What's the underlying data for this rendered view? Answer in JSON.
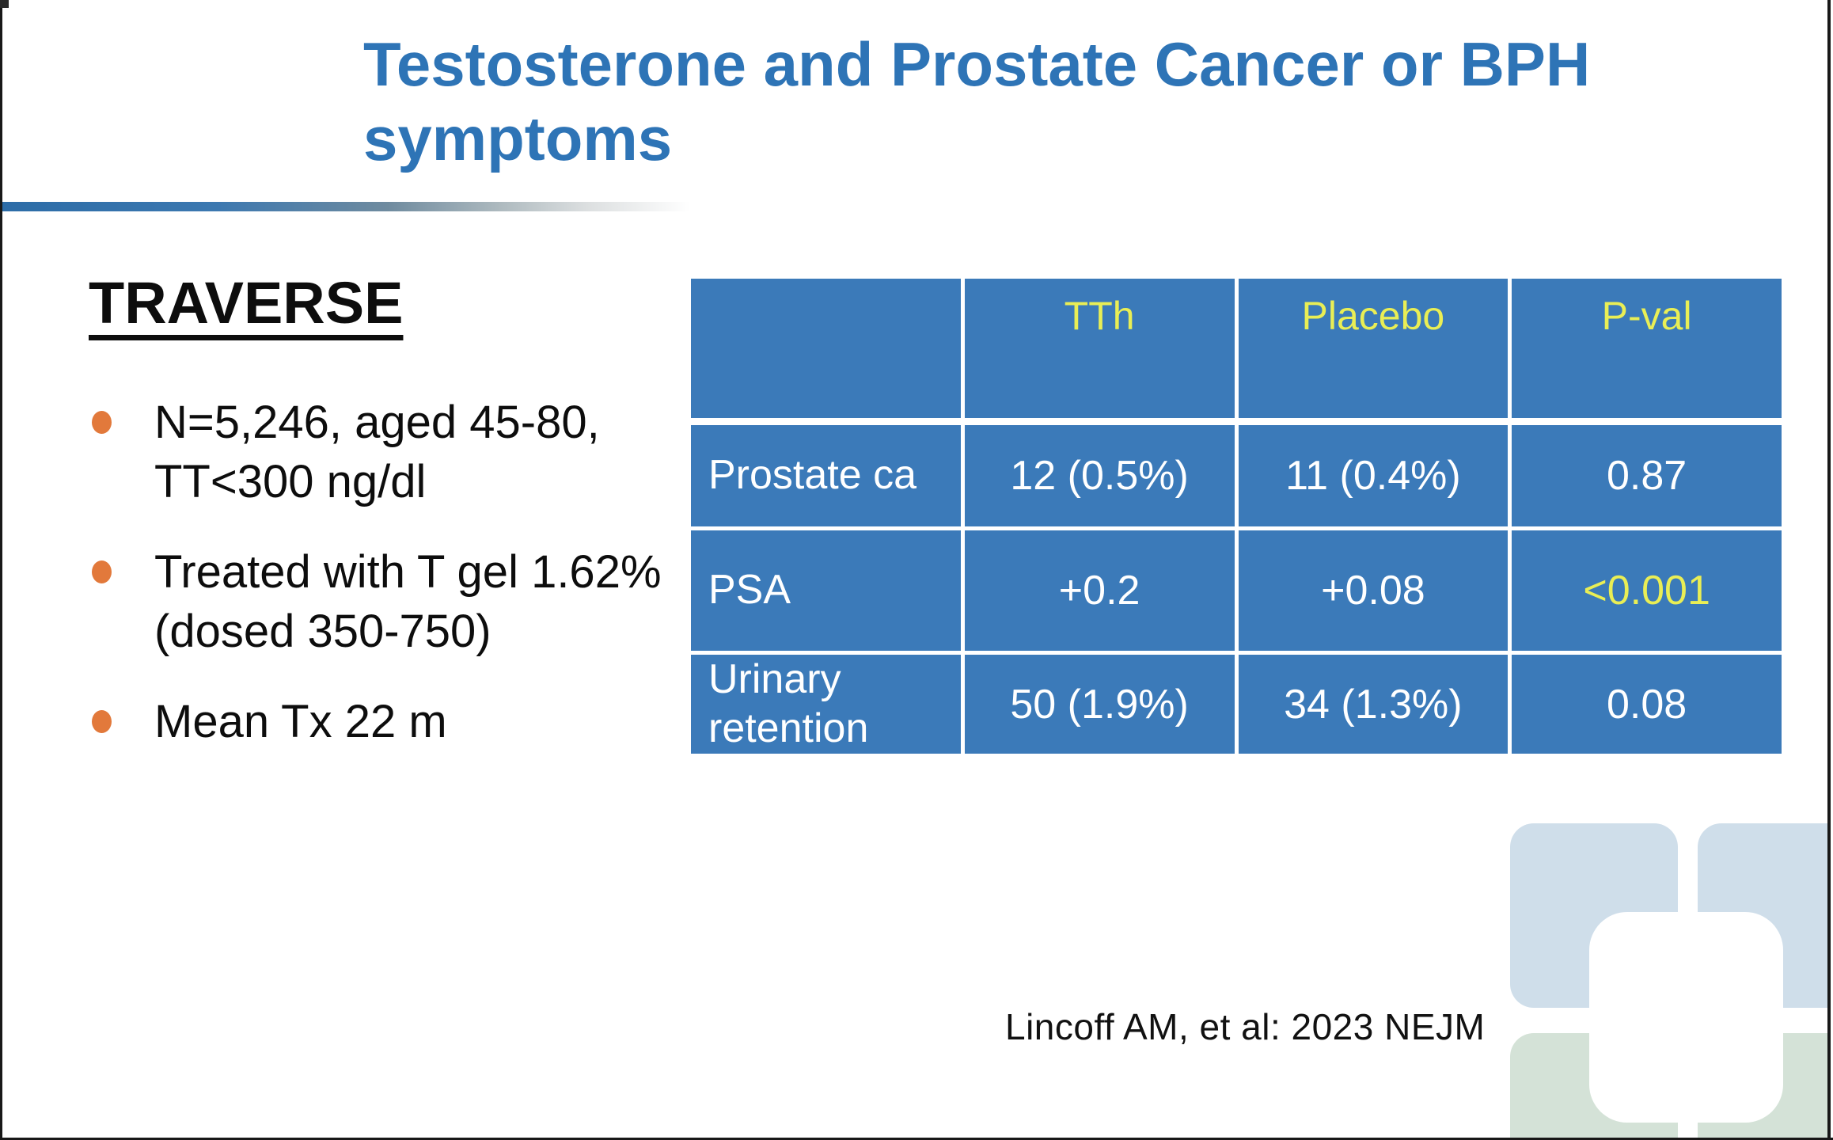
{
  "slide": {
    "title": "Testosterone and Prostate Cancer or BPH symptoms",
    "heading": "TRAVERSE",
    "bullets": [
      "N=5,246, aged 45-80, TT<300 ng/dl",
      "Treated with T gel 1.62% (dosed 350-750)",
      "Mean Tx 22 m"
    ],
    "citation": "Lincoff AM, et al: 2023 NEJM"
  },
  "table": {
    "col_headers": [
      "TTh",
      "Placebo",
      "P-val"
    ],
    "rows": [
      [
        "Prostate ca",
        "12 (0.5%)",
        "11 (0.4%)",
        "0.87"
      ],
      [
        "PSA",
        "+0.2",
        "+0.08",
        "<0.001"
      ],
      [
        "Urinary retention",
        "50 (1.9%)",
        "34 (1.3%)",
        "0.08"
      ]
    ]
  },
  "icons": {
    "bullet": "filled-circle"
  },
  "colors": {
    "title_blue": "#2e74b6",
    "table_blue": "#3b7ab9",
    "table_grid_white": "#ffffff",
    "header_yellow": "#e9ee55",
    "significant_pval_yellow": "#e9ee55",
    "bullet_orange": "#e2793b",
    "rule_gradient_start": "#2c6ca7",
    "logo_pale_blue": "#cfdeea",
    "logo_pale_green": "#d4e2d7",
    "text_black": "#0d0d0d"
  }
}
